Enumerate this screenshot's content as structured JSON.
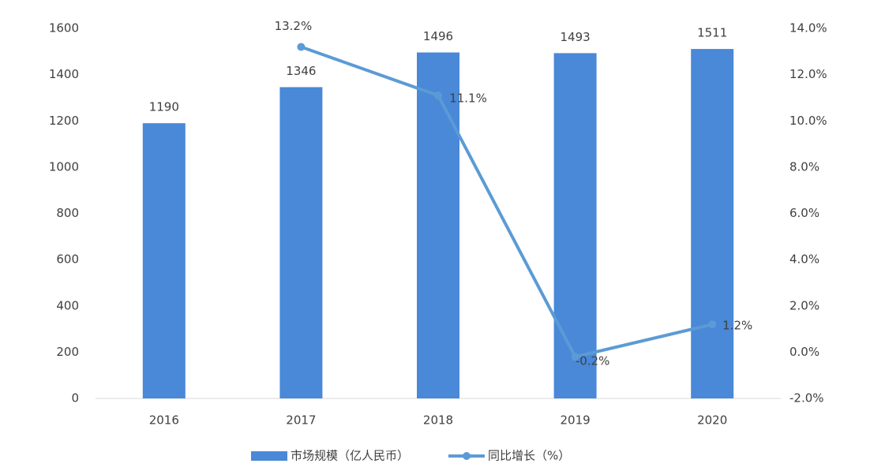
{
  "chart_data": {
    "type": "bar",
    "categories": [
      "2016",
      "2017",
      "2018",
      "2019",
      "2020"
    ],
    "series": [
      {
        "name": "市场规模（亿人民币）",
        "type": "bar",
        "color": "#4a88d8",
        "values": [
          1190,
          1346,
          1496,
          1493,
          1511
        ]
      },
      {
        "name": "同比增长（%）",
        "type": "line",
        "axis": "y2",
        "color": "#5b9bd5",
        "values": [
          null,
          13.2,
          11.1,
          -0.2,
          1.2
        ],
        "value_labels": [
          null,
          "13.2%",
          "11.1%",
          "-0.2%",
          "1.2%"
        ]
      }
    ],
    "ylim": [
      0,
      1600
    ],
    "yticks": [
      0,
      200,
      400,
      600,
      800,
      1000,
      1200,
      1400,
      1600
    ],
    "y2lim": [
      -2,
      14
    ],
    "y2ticks": [
      {
        "value": -2,
        "label": "-2.0%"
      },
      {
        "value": 0,
        "label": "0.0%"
      },
      {
        "value": 2,
        "label": "2.0%"
      },
      {
        "value": 4,
        "label": "4.0%"
      },
      {
        "value": 6,
        "label": "6.0%"
      },
      {
        "value": 8,
        "label": "8.0%"
      },
      {
        "value": 10,
        "label": "10.0%"
      },
      {
        "value": 12,
        "label": "12.0%"
      },
      {
        "value": 14,
        "label": "14.0%"
      }
    ],
    "legend": "bottom",
    "grid": false
  }
}
